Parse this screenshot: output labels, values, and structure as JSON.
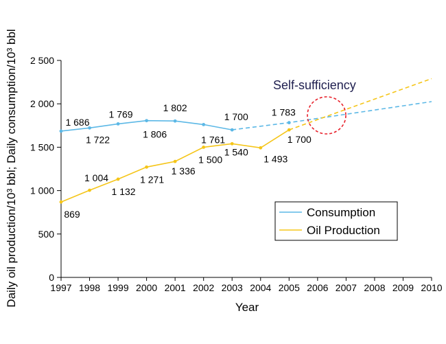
{
  "chart_data": {
    "type": "line",
    "xlabel": "Year",
    "ylabel": "Daily oil production/10³ bbl; Daily consumption/10³ bbl",
    "ylim": [
      0,
      2500
    ],
    "xlim": [
      1997,
      2010
    ],
    "x_ticks": [
      "1997",
      "1998",
      "1999",
      "2000",
      "2001",
      "2002",
      "2003",
      "2004",
      "2005",
      "2006",
      "2007",
      "2008",
      "2009",
      "2010"
    ],
    "y_ticks": [
      "0",
      "500",
      "1 000",
      "1 500",
      "2 000",
      "2 500"
    ],
    "y_tick_values": [
      0,
      500,
      1000,
      1500,
      2000,
      2500
    ],
    "annotation": "Self-sufficiency",
    "legend_position": "lower-right",
    "series": [
      {
        "name": "Consumption",
        "color": "#5cb8e6",
        "x": [
          1997,
          1998,
          1999,
          2000,
          2001,
          2002,
          2003
        ],
        "values": [
          1686,
          1722,
          1769,
          1806,
          1802,
          1761,
          1700
        ],
        "labels": [
          "1 686",
          "1 722",
          "1 769",
          "1 806",
          "1 802",
          "1 761",
          "1 700"
        ],
        "projection": {
          "x": [
            2003,
            2005,
            2010
          ],
          "values": [
            1700,
            1783,
            2025
          ]
        },
        "projection_label": "1 783"
      },
      {
        "name": "Oil Production",
        "color": "#f5c518",
        "x": [
          1997,
          1998,
          1999,
          2000,
          2001,
          2002,
          2003,
          2004,
          2005
        ],
        "values": [
          869,
          1004,
          1132,
          1271,
          1336,
          1500,
          1540,
          1493,
          1700
        ],
        "labels": [
          "869",
          "1 004",
          "1 132",
          "1 271",
          "1 336",
          "1 500",
          "1 540",
          "1 493",
          "1 700"
        ],
        "projection": {
          "x": [
            2005,
            2010
          ],
          "values": [
            1700,
            2290
          ]
        }
      }
    ]
  }
}
